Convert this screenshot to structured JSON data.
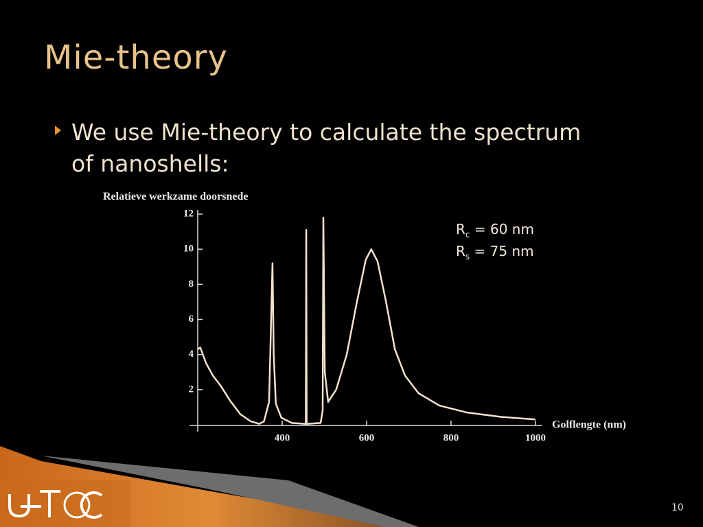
{
  "slide": {
    "title": "Mie-theory",
    "bullet": [
      "We use Mie-theory to calculate the spectrum",
      "of nanoshells:"
    ],
    "page_number": "10",
    "annotations": [
      {
        "symbol": "R",
        "sub": "c",
        "text": "= 60 nm"
      },
      {
        "symbol": "R",
        "sub": "s",
        "text": "= 75 nm"
      }
    ]
  },
  "chart_data": {
    "type": "line",
    "y_label": "Relatieve werkzame doorsnede",
    "x_label": "Golflengte (nm)",
    "color": "#f2e2cc",
    "xlim": [
      200,
      1000
    ],
    "ylim": [
      0,
      12
    ],
    "xticks": [
      400,
      600,
      800,
      1000
    ],
    "yticks": [
      2,
      4,
      6,
      8,
      10,
      12
    ],
    "x": [
      200,
      206,
      220,
      236,
      255,
      276,
      301,
      325,
      346,
      357,
      369,
      372,
      377,
      380,
      385,
      398,
      423,
      456,
      457,
      458,
      491,
      496,
      497.5,
      501,
      509,
      528,
      553,
      577,
      598,
      611,
      626,
      646,
      667,
      691,
      723,
      772,
      837,
      918,
      1000
    ],
    "values": [
      4.3,
      4.4,
      3.5,
      2.8,
      2.2,
      1.4,
      0.6,
      0.2,
      0.05,
      0.2,
      1.3,
      4.2,
      9.2,
      4,
      1.2,
      0.4,
      0.1,
      0.05,
      11.1,
      0.05,
      0.1,
      0.8,
      11.8,
      3,
      1.3,
      2,
      4,
      7,
      9.4,
      10,
      9.3,
      7,
      4.3,
      2.8,
      1.8,
      1.1,
      0.7,
      0.45,
      0.3
    ]
  }
}
